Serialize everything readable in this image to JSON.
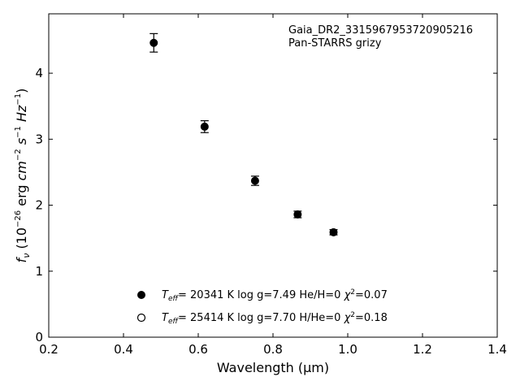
{
  "chart_data": {
    "type": "scatter",
    "xlabel": "Wavelength (μm)",
    "ylabel": "f_ν (10^-26 erg cm^-2 s^-1 Hz^-1)",
    "xlim": [
      0.2,
      1.4
    ],
    "ylim": [
      0,
      4.9
    ],
    "xticks": [
      0.2,
      0.4,
      0.6,
      0.8,
      1.0,
      1.2,
      1.4
    ],
    "xtick_labels": [
      "0.2",
      "0.4",
      "0.6",
      "0.8",
      "1.0",
      "1.2",
      "1.4"
    ],
    "yticks": [
      0,
      1,
      2,
      3,
      4
    ],
    "ytick_labels": [
      "0",
      "1",
      "2",
      "3",
      "4"
    ],
    "grid": false,
    "annotations": [
      "Gaia_DR2_3315967953720905216",
      "Pan-STARRS grizy"
    ],
    "series": [
      {
        "name": "T_eff= 20341 K  log g=7.49  He/H=0  χ²=0.07",
        "marker": "filled-circle",
        "x": [
          0.481,
          0.617,
          0.752,
          0.866,
          0.962
        ],
        "y": [
          4.46,
          3.19,
          2.37,
          1.86,
          1.59
        ],
        "yerr": [
          0.14,
          0.09,
          0.07,
          0.05,
          0.04
        ]
      },
      {
        "name": "T_eff= 25414 K  log g=7.70  H/He=0  χ²=0.18",
        "marker": "open-circle",
        "x": [],
        "y": []
      }
    ]
  }
}
